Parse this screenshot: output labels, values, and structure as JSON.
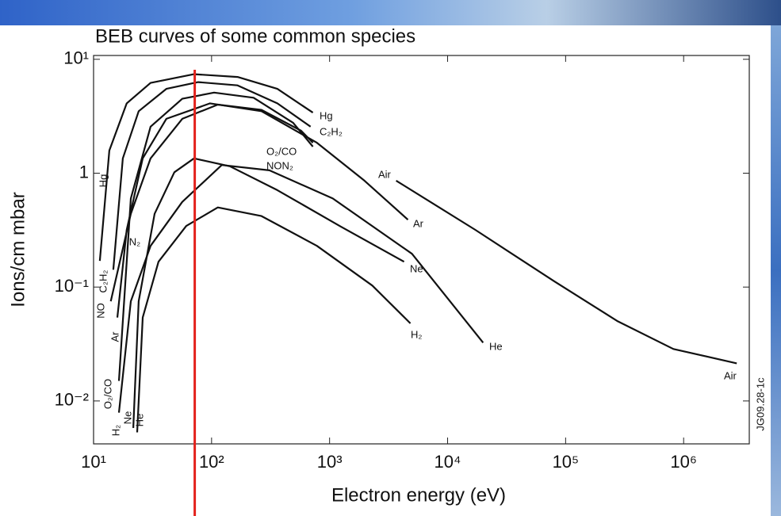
{
  "chart_data": {
    "type": "line",
    "title": "BEB curves of some common species",
    "x_label": "Electron energy (eV)",
    "y_label": "Ions/cm mbar",
    "xscale": "log",
    "yscale": "log",
    "xlim": [
      10,
      3600000
    ],
    "ylim": [
      0.0042,
      10.8
    ],
    "xticks": [
      {
        "value": 10,
        "label": "10¹"
      },
      {
        "value": 100,
        "label": "10²"
      },
      {
        "value": 1000,
        "label": "10³"
      },
      {
        "value": 10000,
        "label": "10⁴"
      },
      {
        "value": 100000,
        "label": "10⁵"
      },
      {
        "value": 1000000,
        "label": "10⁶"
      }
    ],
    "yticks": [
      {
        "value": 10,
        "label": "10¹"
      },
      1,
      {
        "value": 0.1,
        "label": "10⁻¹"
      },
      {
        "value": 0.01,
        "label": "10⁻²"
      }
    ],
    "series": [
      {
        "name": "Hg",
        "color": "#111111",
        "x": [
          11.3,
          13.6,
          19.1,
          30.4,
          71,
          166,
          361,
          722
        ],
        "values": [
          0.17,
          1.58,
          4.1,
          6.2,
          7.4,
          7.0,
          5.5,
          3.4
        ]
      },
      {
        "name": "C₂H₂",
        "color": "#111111",
        "x": [
          14.7,
          17.7,
          24.1,
          41.4,
          76.9,
          166,
          361,
          690
        ],
        "values": [
          0.142,
          1.35,
          3.5,
          5.5,
          6.3,
          5.9,
          4.1,
          2.56
        ]
      },
      {
        "name": "O₂/CO",
        "color": "#111111",
        "x": [
          16.4,
          20.7,
          30.4,
          56.5,
          105,
          227,
          491,
          722
        ],
        "values": [
          0.015,
          0.6,
          2.56,
          4.5,
          5.1,
          4.6,
          2.77,
          1.71
        ]
      },
      {
        "name": "NON₂",
        "color": "#111111",
        "x": [
          14.0,
          20.7,
          30.4,
          56.5,
          113,
          265,
          573,
          722
        ],
        "values": [
          0.075,
          0.44,
          1.35,
          3.0,
          4.0,
          3.6,
          2.36,
          1.85
        ]
      },
      {
        "name": "Ar",
        "color": "#111111",
        "x": [
          15.9,
          19.1,
          26.1,
          41.4,
          97,
          265,
          781,
          1972,
          4613
        ],
        "values": [
          0.054,
          0.318,
          1.35,
          3.0,
          4.1,
          3.5,
          1.85,
          0.86,
          0.39
        ]
      },
      {
        "name": "Air",
        "color": "#111111",
        "x": [
          3664,
          17180,
          80500,
          277000,
          819000,
          2820000
        ],
        "values": [
          0.86,
          0.318,
          0.112,
          0.05,
          0.0286,
          0.0214
        ]
      },
      {
        "name": "Ne",
        "color": "#111111",
        "x": [
          21.7,
          24.1,
          32.9,
          48.4,
          71,
          143,
          361,
          1242,
          4275
        ],
        "values": [
          0.0058,
          0.075,
          0.44,
          1.02,
          1.35,
          1.15,
          0.71,
          0.34,
          0.167
        ]
      },
      {
        "name": "H₂",
        "color": "#111111",
        "x": [
          16.4,
          20.7,
          30.4,
          56.5,
          122,
          309,
          1064,
          4990,
          20000
        ],
        "values": [
          0.0079,
          0.075,
          0.23,
          0.56,
          1.18,
          1.06,
          0.6,
          0.196,
          0.0325
        ]
      },
      {
        "name": "He",
        "color": "#111111",
        "x": [
          23.4,
          26.1,
          35.5,
          61,
          113,
          265,
          781,
          2302,
          4840
        ],
        "values": [
          0.0053,
          0.054,
          0.167,
          0.344,
          0.5,
          0.42,
          0.23,
          0.103,
          0.048
        ]
      }
    ],
    "left_labels": [
      "Hg",
      "C₂H₂",
      "NO",
      "Ar",
      "O₂/CO",
      "H₂",
      "Ne",
      "He",
      "N₂"
    ],
    "figure_code": "JG09.28-1c",
    "vline": {
      "x": 72,
      "color": "#e3211c"
    }
  }
}
